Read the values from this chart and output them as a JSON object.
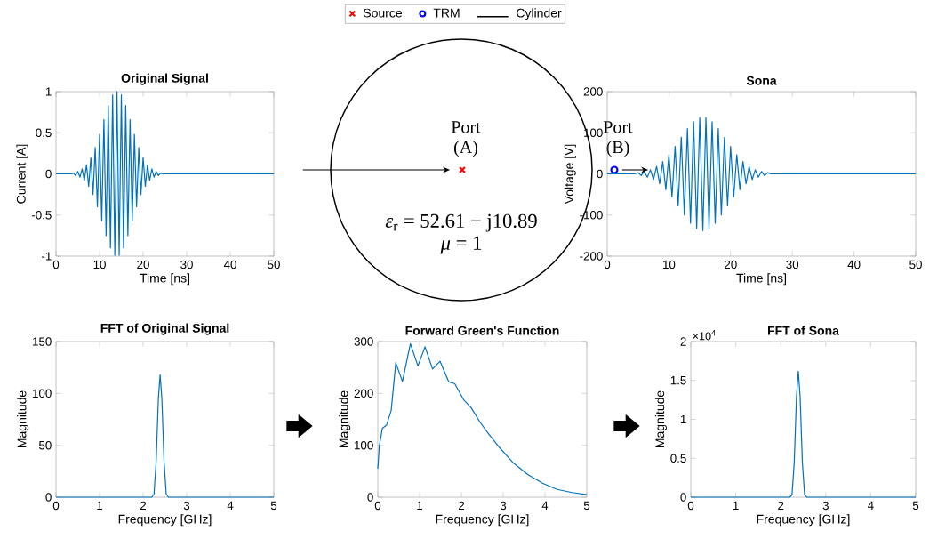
{
  "chart_data": [
    {
      "type": "line",
      "title": "Original Signal",
      "xlabel": "Time [ns]",
      "ylabel": "Current [A]",
      "color": "#0072bd",
      "xlim": [
        0,
        50
      ],
      "xticks": [
        0,
        10,
        20,
        30,
        40,
        50
      ],
      "ylim": [
        -1,
        1
      ],
      "yticks": [
        -1,
        -0.5,
        0,
        0.5,
        1
      ],
      "x": [
        0,
        3.5,
        4,
        4.5,
        5,
        5.5,
        6,
        6.5,
        7,
        7.5,
        8,
        8.5,
        9,
        9.5,
        10,
        10.5,
        11,
        11.5,
        12,
        12.5,
        13,
        13.5,
        14,
        14.5,
        15,
        15.5,
        16,
        16.5,
        17,
        17.5,
        18,
        18.5,
        19,
        19.5,
        20,
        20.5,
        21,
        21.5,
        22,
        22.5,
        23,
        23.5,
        24,
        24.5,
        50
      ],
      "values": [
        0,
        0,
        0.01,
        -0.02,
        0.03,
        -0.04,
        0.06,
        -0.08,
        0.11,
        -0.15,
        0.2,
        -0.25,
        0.32,
        -0.4,
        0.48,
        -0.57,
        0.66,
        -0.75,
        0.83,
        -0.9,
        0.96,
        -0.99,
        1,
        -0.99,
        0.96,
        -0.9,
        0.83,
        -0.75,
        0.66,
        -0.57,
        0.48,
        -0.4,
        0.32,
        -0.25,
        0.2,
        -0.15,
        0.11,
        -0.08,
        0.06,
        -0.04,
        0.03,
        -0.02,
        0.01,
        0,
        0
      ]
    },
    {
      "type": "other",
      "legend": "top",
      "annotations": [
        "Port (A)",
        "Port (B)",
        "*ε*$_{r}$ = 52.61 − j10.89",
        "*μ* = 1"
      ],
      "series": [
        {
          "name": "Source",
          "color": "#ff0000",
          "marker": "cross"
        },
        {
          "name": "TRM",
          "color": "#0000ff",
          "marker": "circle"
        },
        {
          "name": "Cylinder",
          "color": "#000000",
          "marker": "none",
          "line_style": "solid"
        }
      ]
    },
    {
      "type": "line",
      "title": "Sona",
      "xlabel": "Time [ns]",
      "ylabel": "Voltage [V]",
      "color": "#0072bd",
      "xlim": [
        0,
        50
      ],
      "xticks": [
        0,
        10,
        20,
        30,
        40,
        50
      ],
      "ylim": [
        -200,
        200
      ],
      "yticks": [
        -200,
        -100,
        0,
        100,
        200
      ],
      "x": [
        0,
        4.5,
        5,
        5.5,
        6,
        6.5,
        7,
        7.5,
        8,
        8.5,
        9,
        9.5,
        10,
        10.5,
        11,
        11.5,
        12,
        12.5,
        13,
        13.5,
        14,
        14.5,
        15,
        15.5,
        16,
        16.5,
        17,
        17.5,
        18,
        18.5,
        19,
        19.5,
        20,
        20.5,
        21,
        21.5,
        22,
        22.5,
        23,
        23.5,
        24,
        24.5,
        25,
        25.5,
        26,
        26.5,
        50
      ],
      "values": [
        0,
        0,
        3,
        -4,
        6,
        -8,
        10,
        -14,
        18,
        -24,
        30,
        -38,
        47,
        -56,
        67,
        -78,
        89,
        -100,
        110,
        -120,
        127,
        -133,
        137,
        -138,
        137,
        -133,
        127,
        -120,
        110,
        -100,
        89,
        -78,
        67,
        -56,
        47,
        -38,
        30,
        -24,
        18,
        -14,
        10,
        -8,
        6,
        -4,
        3,
        0,
        0
      ]
    },
    {
      "type": "line",
      "title": "FFT of Original Signal",
      "xlabel": "Frequency [GHz]",
      "ylabel": "Magnitude",
      "color": "#0072bd",
      "xlim": [
        0,
        5
      ],
      "xticks": [
        0,
        1,
        2,
        3,
        4,
        5
      ],
      "ylim": [
        0,
        150
      ],
      "yticks": [
        0,
        50,
        100,
        150
      ],
      "x": [
        0,
        2.2,
        2.25,
        2.3,
        2.35,
        2.39,
        2.43,
        2.48,
        2.53,
        2.58,
        5
      ],
      "values": [
        0,
        0,
        3,
        35,
        95,
        118,
        95,
        35,
        3,
        0,
        0
      ]
    },
    {
      "type": "line",
      "title": "Forward Green's Function",
      "xlabel": "Frequency [GHz]",
      "ylabel": "Magnitude",
      "color": "#0072bd",
      "xlim": [
        0,
        5
      ],
      "xticks": [
        0,
        1,
        2,
        3,
        4,
        5
      ],
      "ylim": [
        0,
        300
      ],
      "yticks": [
        0,
        100,
        200,
        300
      ],
      "x": [
        0,
        0.035,
        0.11,
        0.21,
        0.32,
        0.43,
        0.59,
        0.78,
        0.96,
        1.13,
        1.31,
        1.49,
        1.7,
        1.84,
        2.06,
        2.23,
        2.45,
        2.66,
        2.94,
        3.23,
        3.58,
        3.94,
        4.29,
        4.65,
        5
      ],
      "values": [
        55,
        98,
        133,
        139,
        167,
        259,
        223,
        296,
        253,
        290,
        247,
        262,
        222,
        219,
        187,
        173,
        144,
        121,
        93,
        67,
        44,
        27,
        15,
        9,
        5
      ]
    },
    {
      "type": "line",
      "title": "FFT of Sona",
      "xlabel": "Frequency [GHz]",
      "ylabel": "Magnitude",
      "color": "#0072bd",
      "xlim": [
        0,
        5
      ],
      "xticks": [
        0,
        1,
        2,
        3,
        4,
        5
      ],
      "ylim": [
        0,
        2
      ],
      "yticks": [
        0,
        0.5,
        1,
        1.5,
        2
      ],
      "annotations": [
        "×10$^{4}$"
      ],
      "x": [
        0,
        2.2,
        2.25,
        2.3,
        2.35,
        2.39,
        2.43,
        2.48,
        2.53,
        2.58,
        5
      ],
      "values": [
        0,
        0,
        0.03,
        0.45,
        1.3,
        1.62,
        1.3,
        0.45,
        0.03,
        0,
        0
      ]
    }
  ]
}
